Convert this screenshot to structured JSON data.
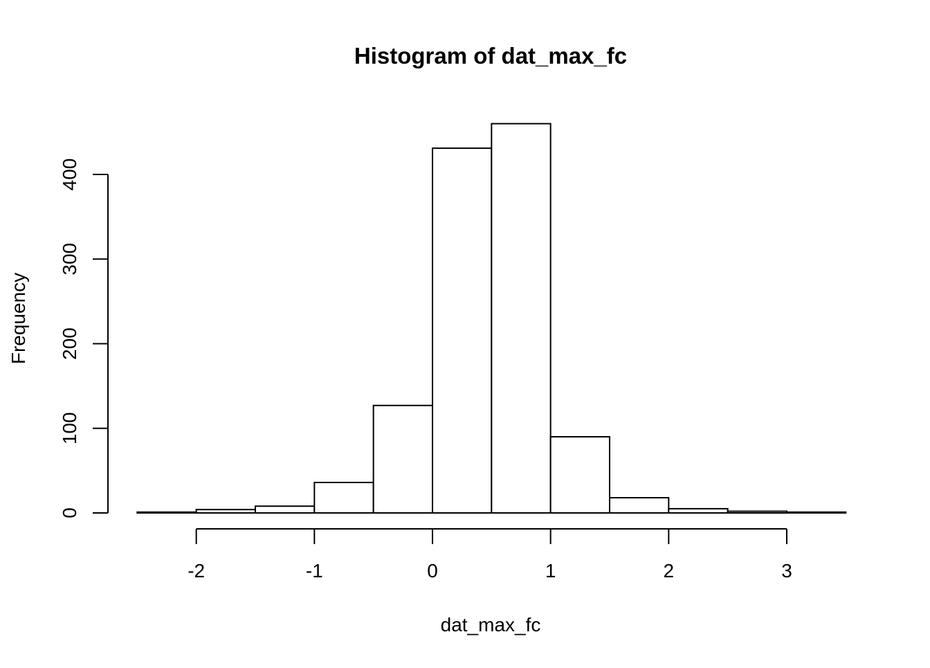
{
  "chart_data": {
    "type": "bar",
    "title": "Histogram of dat_max_fc",
    "xlabel": "dat_max_fc",
    "ylabel": "Frequency",
    "bins": [
      {
        "from": -2.5,
        "to": -2.0,
        "count": 1
      },
      {
        "from": -2.0,
        "to": -1.5,
        "count": 4
      },
      {
        "from": -1.5,
        "to": -1.0,
        "count": 8
      },
      {
        "from": -1.0,
        "to": -0.5,
        "count": 36
      },
      {
        "from": -0.5,
        "to": 0.0,
        "count": 127
      },
      {
        "from": 0.0,
        "to": 0.5,
        "count": 431
      },
      {
        "from": 0.5,
        "to": 1.0,
        "count": 460
      },
      {
        "from": 1.0,
        "to": 1.5,
        "count": 90
      },
      {
        "from": 1.5,
        "to": 2.0,
        "count": 18
      },
      {
        "from": 2.0,
        "to": 2.5,
        "count": 5
      },
      {
        "from": 2.5,
        "to": 3.0,
        "count": 2
      },
      {
        "from": 3.0,
        "to": 3.5,
        "count": 1
      }
    ],
    "x_ticks": [
      -2,
      -1,
      0,
      1,
      2,
      3
    ],
    "y_ticks": [
      0,
      100,
      200,
      300,
      400
    ],
    "xlim": [
      -2.5,
      3.5
    ],
    "ylim": [
      0,
      460
    ],
    "grid": false,
    "bar_fill": "#ffffff",
    "bar_stroke": "#000000"
  }
}
